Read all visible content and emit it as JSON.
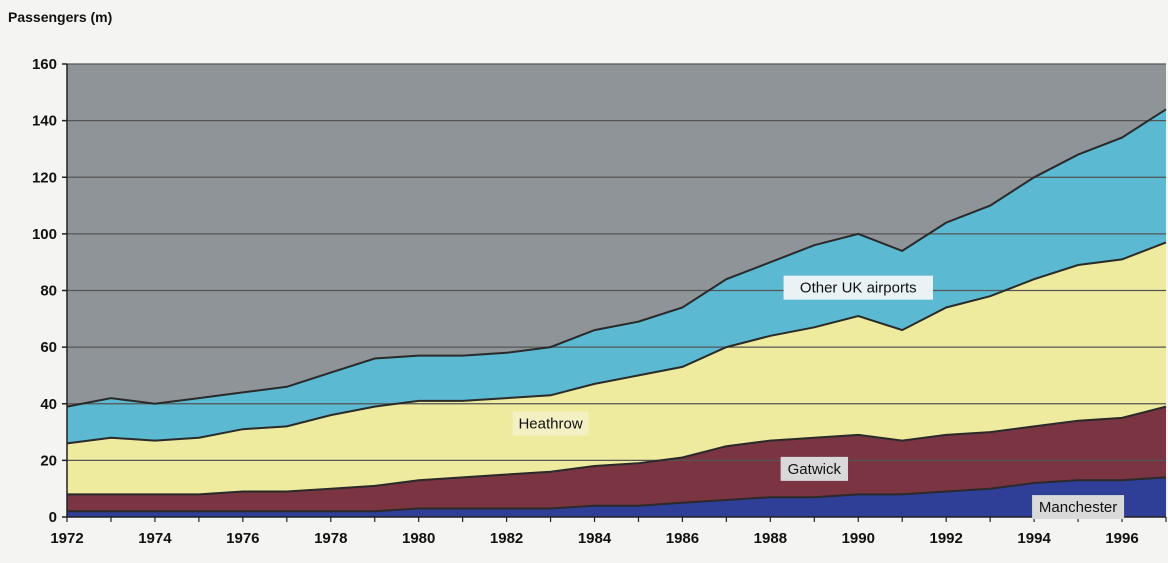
{
  "chart_data": {
    "type": "area",
    "stacked": true,
    "ylabel": "Passengers (m)",
    "ylim": [
      0,
      160
    ],
    "yticks": [
      0,
      20,
      40,
      60,
      80,
      100,
      120,
      140,
      160
    ],
    "xlim": [
      1972,
      1997
    ],
    "xtick_labels": [
      "1972",
      "1974",
      "1976",
      "1978",
      "1980",
      "1982",
      "1984",
      "1986",
      "1988",
      "1990",
      "1992",
      "1994",
      "1996"
    ],
    "grid": true,
    "x": [
      1972,
      1973,
      1974,
      1975,
      1976,
      1977,
      1978,
      1979,
      1980,
      1981,
      1982,
      1983,
      1984,
      1985,
      1986,
      1987,
      1988,
      1989,
      1990,
      1991,
      1992,
      1993,
      1994,
      1995,
      1996,
      1997
    ],
    "series": [
      {
        "name": "Manchester",
        "color": "#2f3f98",
        "values": [
          2,
          2,
          2,
          2,
          2,
          2,
          2,
          2,
          3,
          3,
          3,
          3,
          4,
          4,
          5,
          6,
          7,
          7,
          8,
          8,
          9,
          10,
          12,
          13,
          13,
          14
        ]
      },
      {
        "name": "Gatwick",
        "color": "#7a3442",
        "values": [
          6,
          6,
          6,
          6,
          7,
          7,
          8,
          9,
          10,
          11,
          12,
          13,
          14,
          15,
          16,
          19,
          20,
          21,
          21,
          19,
          20,
          20,
          20,
          21,
          22,
          25
        ]
      },
      {
        "name": "Heathrow",
        "color": "#eeeb9e",
        "values": [
          18,
          20,
          19,
          20,
          22,
          23,
          26,
          28,
          28,
          27,
          27,
          27,
          29,
          31,
          32,
          35,
          37,
          39,
          42,
          39,
          45,
          48,
          52,
          55,
          56,
          58
        ]
      },
      {
        "name": "Other UK airports",
        "color": "#5bb9d1",
        "values": [
          13,
          14,
          13,
          14,
          13,
          14,
          15,
          17,
          16,
          16,
          16,
          17,
          19,
          19,
          21,
          24,
          26,
          29,
          29,
          28,
          30,
          32,
          36,
          39,
          43,
          47
        ]
      }
    ],
    "annotations": [
      {
        "text": "Other UK airports",
        "x": 1990,
        "y": 81
      },
      {
        "text": "Heathrow",
        "x": 1983,
        "y": 33
      },
      {
        "text": "Gatwick",
        "x": 1989,
        "y": 17
      },
      {
        "text": "Manchester",
        "x": 1995,
        "y": 3.5
      }
    ],
    "background_color": "#8e9498"
  }
}
